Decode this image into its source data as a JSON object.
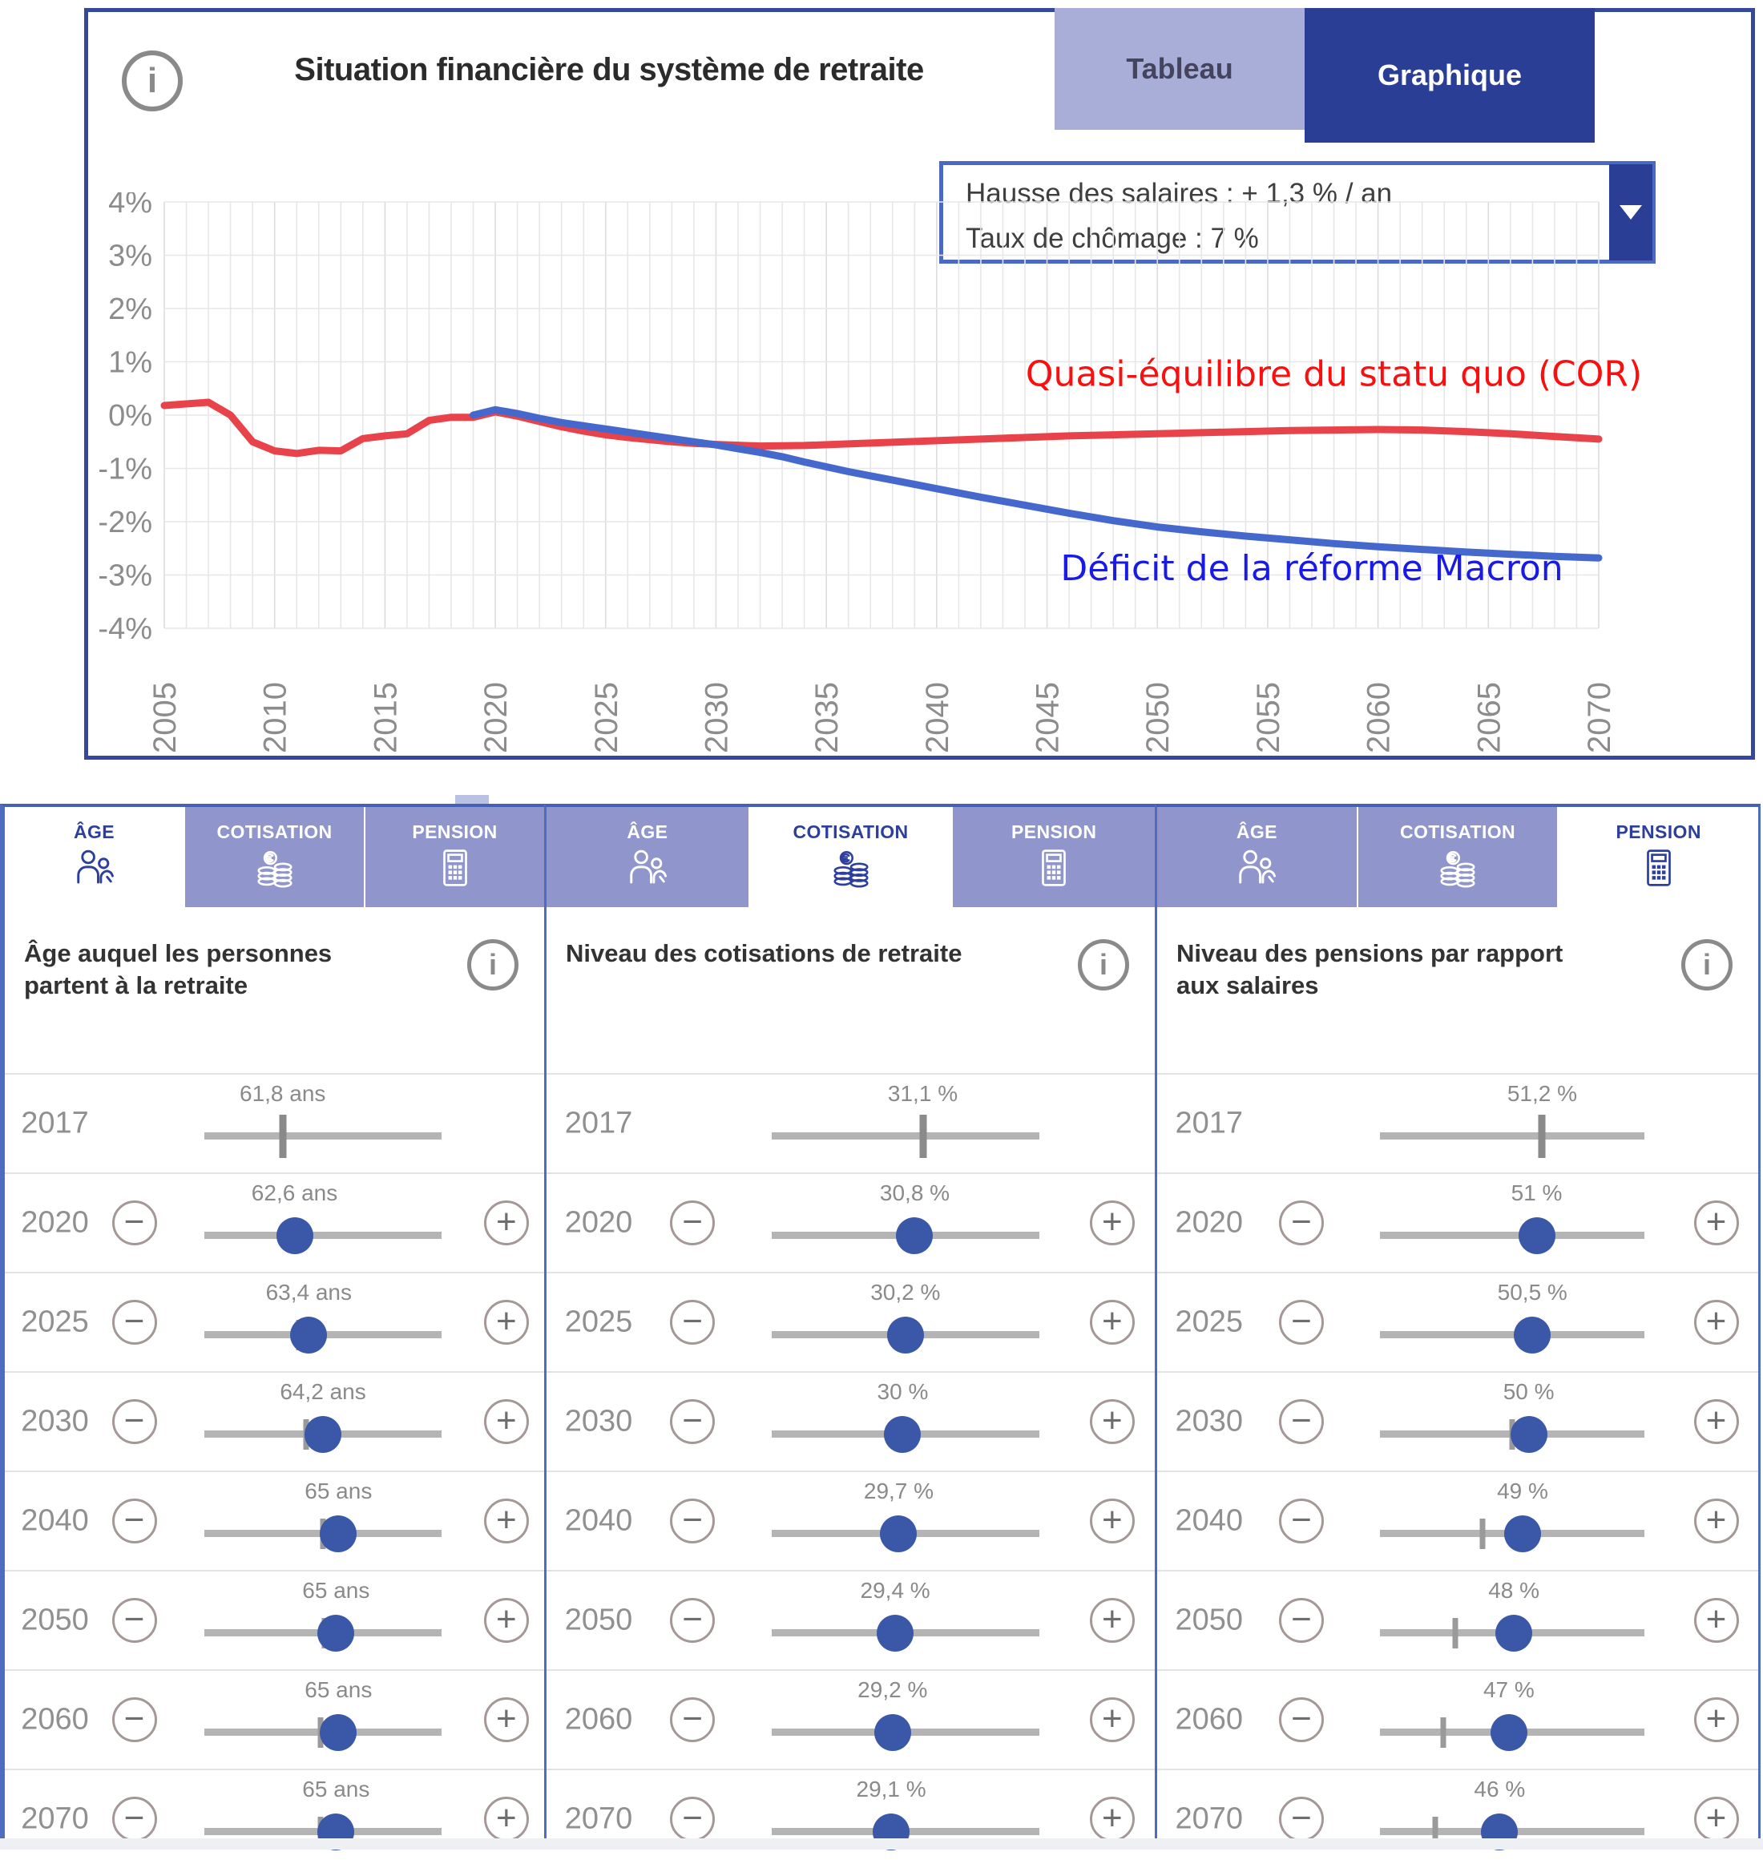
{
  "colors": {
    "accent_dark_blue": "#2b3e96",
    "tab_light_purple": "#a9aed8",
    "panel_tab_purple": "#9096cb",
    "select_border": "#4a68c4",
    "red_line": "#e8434a",
    "red_label": "#f90f0f",
    "blue_line": "#4468cb",
    "blue_label": "#1a1ae6",
    "thumb_blue": "#3a57a8",
    "grid": "#e7e7ea",
    "grid_major": "#dcdce0",
    "axis_text": "#8c8c8c"
  },
  "chart_card": {
    "info_icon": "i",
    "title": "Situation financière du système de retraite",
    "tabs": [
      {
        "label": "Tableau",
        "active": false
      },
      {
        "label": "Graphique",
        "active": true
      }
    ],
    "scenario_select": {
      "line1": "Hausse des salaires : + 1,3 % / an",
      "line2": "Taux de chômage : 7 %"
    },
    "chart_data": {
      "type": "line",
      "title": "Situation financière du système de retraite",
      "xlabel": "",
      "ylabel": "",
      "x_range": [
        2005,
        2070
      ],
      "y_range": [
        -4,
        4
      ],
      "grid": "on",
      "y_tick_labels": [
        "4%",
        "3%",
        "2%",
        "1%",
        "0%",
        "-1%",
        "-2%",
        "-3%",
        "-4%"
      ],
      "x_tick_labels": [
        "2005",
        "2010",
        "2015",
        "2020",
        "2025",
        "2030",
        "2035",
        "2040",
        "2045",
        "2050",
        "2055",
        "2060",
        "2065",
        "2070"
      ],
      "series": [
        {
          "name": "Quasi-équilibre du statu quo (COR)",
          "line_color": "#e8434a",
          "points": [
            [
              2005,
              0.18
            ],
            [
              2006,
              0.21
            ],
            [
              2007,
              0.24
            ],
            [
              2008,
              0.0
            ],
            [
              2009,
              -0.5
            ],
            [
              2010,
              -0.67
            ],
            [
              2011,
              -0.72
            ],
            [
              2012,
              -0.66
            ],
            [
              2013,
              -0.67
            ],
            [
              2014,
              -0.44
            ],
            [
              2015,
              -0.39
            ],
            [
              2016,
              -0.35
            ],
            [
              2017,
              -0.1
            ],
            [
              2018,
              -0.04
            ],
            [
              2019,
              -0.04
            ],
            [
              2020,
              0.06
            ],
            [
              2021,
              -0.02
            ],
            [
              2022,
              -0.12
            ],
            [
              2023,
              -0.22
            ],
            [
              2024,
              -0.3
            ],
            [
              2025,
              -0.37
            ],
            [
              2026,
              -0.42
            ],
            [
              2027,
              -0.46
            ],
            [
              2028,
              -0.5
            ],
            [
              2029,
              -0.53
            ],
            [
              2030,
              -0.55
            ],
            [
              2032,
              -0.58
            ],
            [
              2034,
              -0.57
            ],
            [
              2036,
              -0.54
            ],
            [
              2038,
              -0.51
            ],
            [
              2040,
              -0.48
            ],
            [
              2042,
              -0.45
            ],
            [
              2044,
              -0.42
            ],
            [
              2046,
              -0.39
            ],
            [
              2048,
              -0.37
            ],
            [
              2050,
              -0.35
            ],
            [
              2052,
              -0.33
            ],
            [
              2054,
              -0.31
            ],
            [
              2056,
              -0.29
            ],
            [
              2058,
              -0.28
            ],
            [
              2060,
              -0.27
            ],
            [
              2062,
              -0.28
            ],
            [
              2064,
              -0.31
            ],
            [
              2066,
              -0.35
            ],
            [
              2068,
              -0.4
            ],
            [
              2070,
              -0.45
            ]
          ]
        },
        {
          "name": "Déficit de la réforme Macron",
          "line_color": "#4468cb",
          "points": [
            [
              2019,
              0.0
            ],
            [
              2020,
              0.1
            ],
            [
              2021,
              0.03
            ],
            [
              2022,
              -0.06
            ],
            [
              2023,
              -0.14
            ],
            [
              2024,
              -0.2
            ],
            [
              2025,
              -0.26
            ],
            [
              2026,
              -0.32
            ],
            [
              2027,
              -0.38
            ],
            [
              2028,
              -0.44
            ],
            [
              2029,
              -0.5
            ],
            [
              2030,
              -0.56
            ],
            [
              2031,
              -0.63
            ],
            [
              2032,
              -0.7
            ],
            [
              2033,
              -0.78
            ],
            [
              2034,
              -0.88
            ],
            [
              2035,
              -0.97
            ],
            [
              2036,
              -1.06
            ],
            [
              2037,
              -1.14
            ],
            [
              2038,
              -1.22
            ],
            [
              2039,
              -1.3
            ],
            [
              2040,
              -1.38
            ],
            [
              2042,
              -1.54
            ],
            [
              2044,
              -1.69
            ],
            [
              2046,
              -1.84
            ],
            [
              2048,
              -1.98
            ],
            [
              2050,
              -2.1
            ],
            [
              2052,
              -2.19
            ],
            [
              2054,
              -2.27
            ],
            [
              2056,
              -2.34
            ],
            [
              2058,
              -2.41
            ],
            [
              2060,
              -2.47
            ],
            [
              2062,
              -2.52
            ],
            [
              2064,
              -2.57
            ],
            [
              2066,
              -2.61
            ],
            [
              2068,
              -2.65
            ],
            [
              2070,
              -2.68
            ]
          ]
        }
      ],
      "annotations": [
        {
          "text": "Quasi-équilibre du statu quo (COR)",
          "x": 2058,
          "y": 0.55,
          "color": "#f90f0f"
        },
        {
          "text": "Déficit de la réforme Macron",
          "x": 2057,
          "y": -3.1,
          "color": "#1a1ae6"
        }
      ],
      "legend_position": "inline-annotations"
    }
  },
  "controls": {
    "minus_label": "−",
    "plus_label": "+",
    "info_label": "i"
  },
  "panels": [
    {
      "heading": "Âge auquel les personnes partent à la retraite",
      "tabs": [
        {
          "id": "age",
          "label": "ÂGE",
          "icon": "people",
          "active": true
        },
        {
          "id": "cotisation",
          "label": "COTISATION",
          "icon": "coins",
          "active": false
        },
        {
          "id": "pension",
          "label": "PENSION",
          "icon": "calculator",
          "active": false
        }
      ],
      "rows": [
        {
          "year": "2017",
          "value": "61,8 ans",
          "readonly": true,
          "tick": 0.33
        },
        {
          "year": "2020",
          "value": "62,6 ans",
          "thumb": 0.38,
          "tick": 0.36
        },
        {
          "year": "2025",
          "value": "63,4 ans",
          "thumb": 0.44,
          "tick": 0.4
        },
        {
          "year": "2030",
          "value": "64,2 ans",
          "thumb": 0.5,
          "tick": 0.43
        },
        {
          "year": "2040",
          "value": "65 ans",
          "thumb": 0.565,
          "tick": 0.5
        },
        {
          "year": "2050",
          "value": "65 ans",
          "thumb": 0.555,
          "tick": 0.505
        },
        {
          "year": "2060",
          "value": "65 ans",
          "thumb": 0.565,
          "tick": 0.49
        },
        {
          "year": "2070",
          "value": "65 ans",
          "thumb": 0.555,
          "tick": 0.49
        }
      ]
    },
    {
      "heading": "Niveau des cotisations de retraite",
      "tabs": [
        {
          "id": "age",
          "label": "ÂGE",
          "icon": "people",
          "active": false
        },
        {
          "id": "cotisation",
          "label": "COTISATION",
          "icon": "coins",
          "active": true
        },
        {
          "id": "pension",
          "label": "PENSION",
          "icon": "calculator",
          "active": false
        }
      ],
      "rows": [
        {
          "year": "2017",
          "value": "31,1 %",
          "readonly": true,
          "tick": 0.565
        },
        {
          "year": "2020",
          "value": "30,8 %",
          "thumb": 0.535,
          "tick": 0.555
        },
        {
          "year": "2025",
          "value": "30,2 %",
          "thumb": 0.5,
          "tick": 0.53
        },
        {
          "year": "2030",
          "value": "30 %",
          "thumb": 0.49,
          "tick": 0.52
        },
        {
          "year": "2040",
          "value": "29,7 %",
          "thumb": 0.475,
          "tick": 0.5
        },
        {
          "year": "2050",
          "value": "29,4 %",
          "thumb": 0.462,
          "tick": 0.49
        },
        {
          "year": "2060",
          "value": "29,2 %",
          "thumb": 0.452,
          "tick": 0.482
        },
        {
          "year": "2070",
          "value": "29,1 %",
          "thumb": 0.447,
          "tick": 0.478
        }
      ]
    },
    {
      "heading": "Niveau des pensions par rapport aux salaires",
      "tabs": [
        {
          "id": "age",
          "label": "ÂGE",
          "icon": "people",
          "active": false
        },
        {
          "id": "cotisation",
          "label": "COTISATION",
          "icon": "coins",
          "active": false
        },
        {
          "id": "pension",
          "label": "PENSION",
          "icon": "calculator",
          "active": true
        }
      ],
      "rows": [
        {
          "year": "2017",
          "value": "51,2 %",
          "readonly": true,
          "tick": 0.615
        },
        {
          "year": "2020",
          "value": "51 %",
          "thumb": 0.594,
          "tick": 0.585
        },
        {
          "year": "2025",
          "value": "50,5 %",
          "thumb": 0.578,
          "tick": 0.556
        },
        {
          "year": "2030",
          "value": "50 %",
          "thumb": 0.564,
          "tick": 0.5
        },
        {
          "year": "2040",
          "value": "49 %",
          "thumb": 0.541,
          "tick": 0.388
        },
        {
          "year": "2050",
          "value": "48 %",
          "thumb": 0.508,
          "tick": 0.286
        },
        {
          "year": "2060",
          "value": "47 %",
          "thumb": 0.489,
          "tick": 0.24
        },
        {
          "year": "2070",
          "value": "46 %",
          "thumb": 0.454,
          "tick": 0.21
        }
      ]
    }
  ]
}
